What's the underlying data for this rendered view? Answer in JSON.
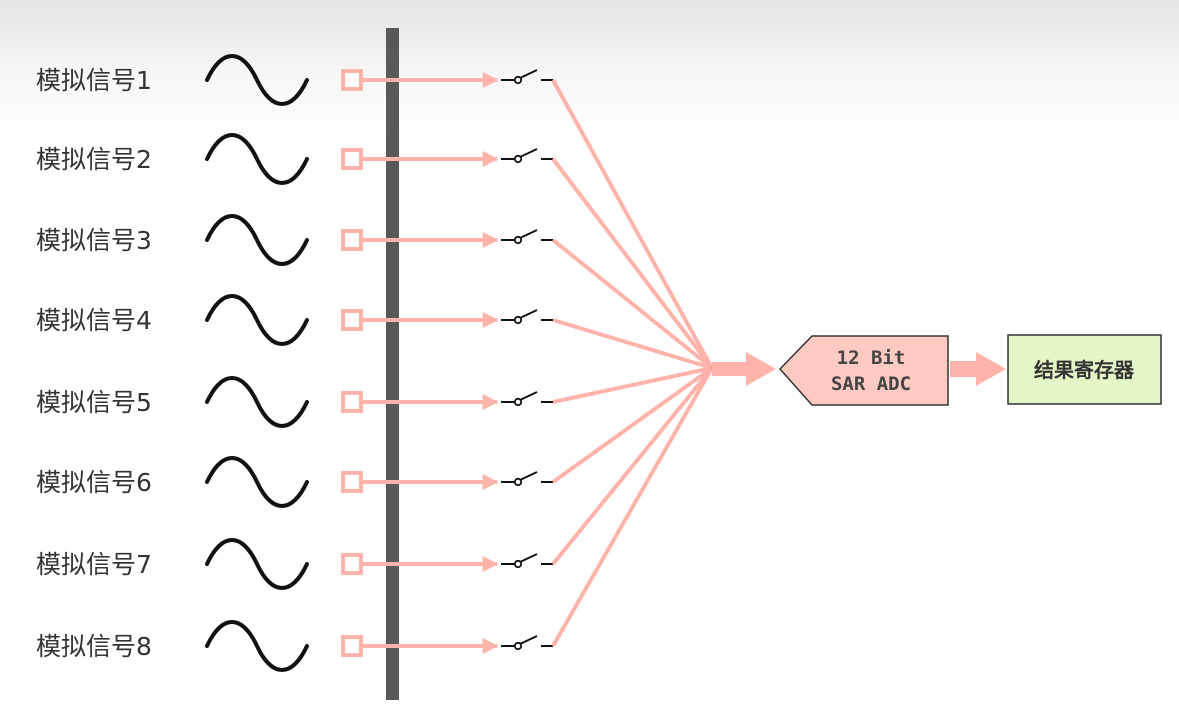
{
  "channels": [
    {
      "label": "模拟信号1"
    },
    {
      "label": "模拟信号2"
    },
    {
      "label": "模拟信号3"
    },
    {
      "label": "模拟信号4"
    },
    {
      "label": "模拟信号5"
    },
    {
      "label": "模拟信号6"
    },
    {
      "label": "模拟信号7"
    },
    {
      "label": "模拟信号8"
    }
  ],
  "adc": {
    "line1": "12 Bit",
    "line2": "SAR ADC"
  },
  "result_register": {
    "label": "结果寄存器"
  },
  "colors": {
    "wire": "#ffb3aa",
    "adc_fill": "#ffcac2",
    "register_fill": "#e2f6c8",
    "bus": "#595959",
    "wave": "#111111",
    "mux_point": "#e03020"
  },
  "icons": {
    "wave": "sine-wave-icon",
    "switch": "switch-icon",
    "pad": "pin-pad-icon"
  }
}
